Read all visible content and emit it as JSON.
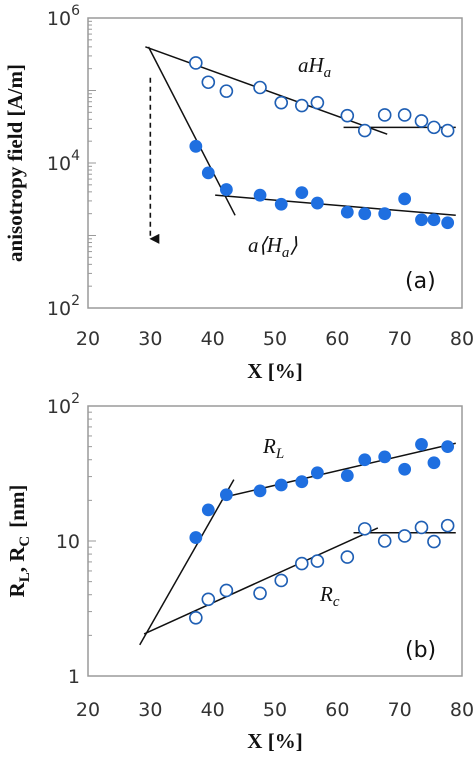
{
  "chart_data": [
    {
      "type": "scatter",
      "panel_label": "(a)",
      "xlabel": "X [%]",
      "ylabel": "anisotropy field [A/m]",
      "yscale": "log",
      "xlim": [
        20,
        80
      ],
      "ylim": [
        100,
        1000000
      ],
      "x_ticks": [
        "20",
        "30",
        "40",
        "50",
        "60",
        "70",
        "80"
      ],
      "y_ticks": [
        {
          "value": 1000000,
          "base": "10",
          "exp": "6"
        },
        {
          "value": 10000,
          "base": "10",
          "exp": "4"
        },
        {
          "value": 100,
          "base": "10",
          "exp": "2"
        }
      ],
      "series": [
        {
          "annotation_base": "aH",
          "annotation_sub": "a",
          "marker": "open-circle",
          "color": "#1f5fb4",
          "points": [
            [
              37.3,
              240000
            ],
            [
              39.3,
              130000
            ],
            [
              42.2,
              98000
            ],
            [
              47.6,
              110000
            ],
            [
              51,
              68000
            ],
            [
              54.3,
              62000
            ],
            [
              56.8,
              68000
            ],
            [
              61.6,
              45000
            ],
            [
              64.4,
              28000
            ],
            [
              67.6,
              46000
            ],
            [
              70.8,
              46000
            ],
            [
              73.5,
              38000
            ],
            [
              75.5,
              31000
            ],
            [
              77.7,
              28000
            ]
          ],
          "fit_lines": [
            {
              "x": [
                29.2,
                68
              ],
              "y": [
                400000,
                25000
              ]
            },
            {
              "x": [
                61,
                79
              ],
              "y": [
                31000,
                31000
              ]
            }
          ]
        },
        {
          "annotation_prefix": "a⟨H",
          "annotation_sub": "a",
          "annotation_suffix": "⟩",
          "marker": "filled-circle",
          "color": "#1f6fe0",
          "points": [
            [
              37.3,
              17000
            ],
            [
              39.3,
              7300
            ],
            [
              42.2,
              4300
            ],
            [
              47.6,
              3600
            ],
            [
              51,
              2700
            ],
            [
              54.3,
              3900
            ],
            [
              56.8,
              2800
            ],
            [
              61.6,
              2100
            ],
            [
              64.4,
              2000
            ],
            [
              67.6,
              2000
            ],
            [
              70.8,
              3200
            ],
            [
              73.5,
              1650
            ],
            [
              75.5,
              1650
            ],
            [
              77.7,
              1500
            ]
          ],
          "fit_lines": [
            {
              "x": [
                29.7,
                43.6
              ],
              "y": [
                400000,
                1900
              ]
            },
            {
              "x": [
                40.4,
                79
              ],
              "y": [
                3600,
                1900
              ]
            }
          ]
        }
      ],
      "arrow": {
        "x": 30,
        "from_y": 150000,
        "to_y": 900
      }
    },
    {
      "type": "scatter",
      "panel_label": "(b)",
      "xlabel": "X [%]",
      "ylabel_main": "R",
      "ylabel_sub1": "L",
      "ylabel_mid": ", R",
      "ylabel_sub2": "C",
      "ylabel_unit": "[nm]",
      "yscale": "log",
      "xlim": [
        20,
        80
      ],
      "ylim": [
        1,
        100
      ],
      "x_ticks": [
        "20",
        "30",
        "40",
        "50",
        "60",
        "70",
        "80"
      ],
      "y_ticks": [
        {
          "value": 100,
          "base": "10",
          "exp": "2"
        },
        {
          "value": 10,
          "base": "10",
          "exp": ""
        },
        {
          "value": 1,
          "base": "1",
          "exp": ""
        }
      ],
      "series": [
        {
          "annotation_base": "R",
          "annotation_sub": "L",
          "marker": "filled-circle",
          "color": "#1f6fe0",
          "points": [
            [
              37.3,
              10.6
            ],
            [
              39.3,
              17
            ],
            [
              42.2,
              22
            ],
            [
              47.6,
              23.5
            ],
            [
              51,
              26
            ],
            [
              54.3,
              27.5
            ],
            [
              56.8,
              32
            ],
            [
              61.6,
              30.5
            ],
            [
              64.4,
              40
            ],
            [
              67.6,
              42
            ],
            [
              70.8,
              34
            ],
            [
              73.5,
              52
            ],
            [
              75.5,
              38
            ],
            [
              77.7,
              50
            ]
          ],
          "fit_lines": [
            {
              "x": [
                28.3,
                43.4
              ],
              "y": [
                1.7,
                28.5
              ]
            },
            {
              "x": [
                41.6,
                79
              ],
              "y": [
                21,
                53
              ]
            }
          ]
        },
        {
          "annotation_base": "R",
          "annotation_sub": "c",
          "marker": "open-circle",
          "color": "#1f5fb4",
          "points": [
            [
              37.3,
              2.7
            ],
            [
              39.3,
              3.7
            ],
            [
              42.2,
              4.3
            ],
            [
              47.6,
              4.1
            ],
            [
              51,
              5.1
            ],
            [
              54.3,
              6.8
            ],
            [
              56.8,
              7.1
            ],
            [
              61.6,
              7.6
            ],
            [
              64.4,
              12.3
            ],
            [
              67.6,
              10
            ],
            [
              70.8,
              10.9
            ],
            [
              73.5,
              12.6
            ],
            [
              75.5,
              9.9
            ],
            [
              77.7,
              13
            ]
          ],
          "fit_lines": [
            {
              "x": [
                29,
                66.5
              ],
              "y": [
                2.05,
                12.5
              ]
            },
            {
              "x": [
                62.6,
                79
              ],
              "y": [
                11.5,
                11.5
              ]
            }
          ]
        }
      ]
    }
  ]
}
